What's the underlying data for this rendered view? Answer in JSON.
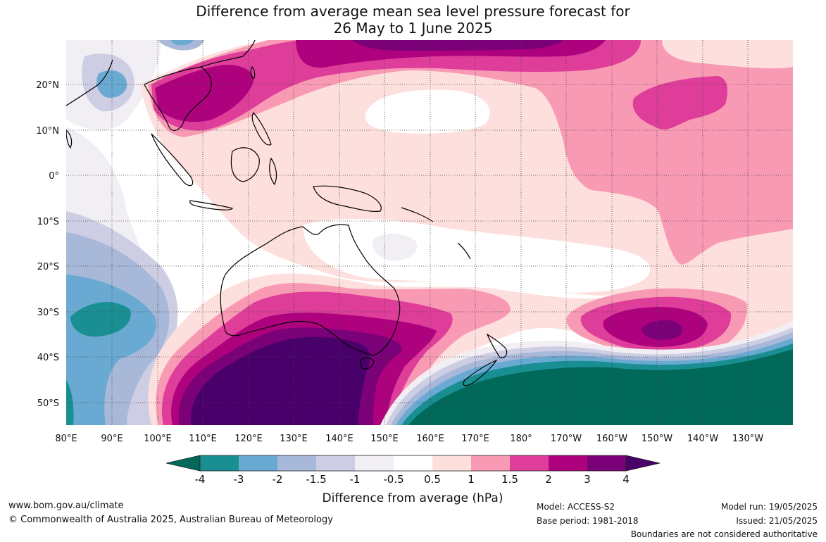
{
  "title": {
    "line1": "Difference from average mean sea level pressure forecast for",
    "line2": "26 May to 1 June 2025"
  },
  "axes": {
    "lon_labels": [
      "80°E",
      "90°E",
      "100°E",
      "110°E",
      "120°E",
      "130°E",
      "140°E",
      "150°E",
      "160°E",
      "170°E",
      "180°",
      "170°W",
      "160°W",
      "150°W",
      "140°W",
      "130°W"
    ],
    "lat_labels": [
      "20°N",
      "10°N",
      "0°",
      "10°S",
      "20°S",
      "30°S",
      "40°S",
      "50°S"
    ]
  },
  "colorbar": {
    "label": "Difference from average (hPa)",
    "ticks": [
      "-4",
      "-3",
      "-2",
      "-1.5",
      "-1",
      "-0.5",
      "0.5",
      "1",
      "1.5",
      "2",
      "3",
      "4"
    ],
    "colors": [
      "#00695a",
      "#1a8f93",
      "#6aaad2",
      "#a7b8d8",
      "#cdcde3",
      "#f1eef4",
      "#ffffff",
      "#fde0dd",
      "#f99ab4",
      "#de3d9a",
      "#ae017e",
      "#7a0177",
      "#49006a"
    ]
  },
  "footer": {
    "website": "www.bom.gov.au/climate",
    "copyright": "© Commonwealth of Australia 2025, Australian Bureau of Meteorology",
    "model": "Model: ACCESS-S2",
    "base_period": "Base period: 1981-2018",
    "model_run": "Model run: 19/05/2025",
    "issued": "Issued: 21/05/2025",
    "disclaimer": "Boundaries are not considered authoritative"
  }
}
